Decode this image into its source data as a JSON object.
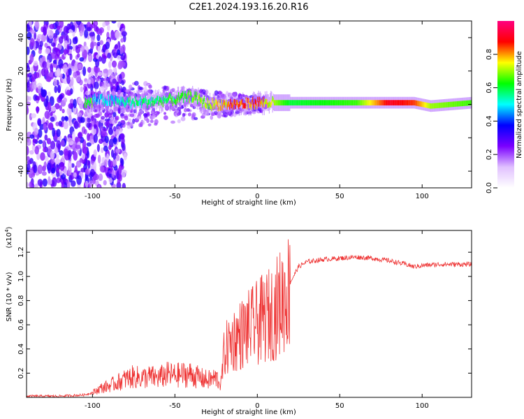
{
  "title": "C2E1.2024.193.16.20.R16",
  "chart_data": [
    {
      "type": "heatmap",
      "title": "C2E1.2024.193.16.20.R16",
      "xlabel": "Height of straight line (km)",
      "ylabel": "Frequency (Hz)",
      "xlim": [
        -140,
        130
      ],
      "ylim": [
        -50,
        50
      ],
      "xticks": [
        -100,
        -50,
        0,
        50,
        100
      ],
      "yticks": [
        -40,
        -20,
        0,
        20,
        40
      ],
      "colorbar": {
        "label": "Normalized spectral amplitude",
        "range": [
          0,
          1
        ],
        "ticks": [
          0.0,
          0.2,
          0.4,
          0.6,
          0.8
        ],
        "colormap": [
          "#ffffff",
          "#e0c0ff",
          "#7a00ff",
          "#0000ff",
          "#00ffff",
          "#00ff00",
          "#ffff00",
          "#ff0000",
          "#ff0080"
        ]
      },
      "ridge": {
        "description_points": [
          {
            "x": -100,
            "freq": 3,
            "amp": 0.45
          },
          {
            "x": -75,
            "freq": 1,
            "amp": 0.55
          },
          {
            "x": -50,
            "freq": 3,
            "amp": 0.6
          },
          {
            "x": -40,
            "freq": 5,
            "amp": 0.65
          },
          {
            "x": -30,
            "freq": 0,
            "amp": 0.7
          },
          {
            "x": -10,
            "freq": 0,
            "amp": 0.85
          },
          {
            "x": 0,
            "freq": 1,
            "amp": 0.8
          },
          {
            "x": 20,
            "freq": 1,
            "amp": 0.6
          },
          {
            "x": 60,
            "freq": 1,
            "amp": 0.65
          },
          {
            "x": 80,
            "freq": 1,
            "amp": 0.9
          },
          {
            "x": 95,
            "freq": 1,
            "amp": 0.85
          },
          {
            "x": 105,
            "freq": -1,
            "amp": 0.7
          },
          {
            "x": 130,
            "freq": 1,
            "amp": 0.65
          }
        ]
      }
    },
    {
      "type": "line",
      "xlabel": "Height of straight line (km)",
      "ylabel": "SNR (10 * v/v)",
      "yscale_label": "(x10",
      "yscale_exp": "4",
      "yscale_close": ")",
      "xlim": [
        -140,
        130
      ],
      "ylim": [
        0,
        1.38
      ],
      "xticks": [
        -100,
        -50,
        0,
        50,
        100
      ],
      "yticks": [
        0.2,
        0.4,
        0.6,
        0.8,
        1.0,
        1.2
      ],
      "color": "#ee3333",
      "series": [
        {
          "name": "SNR",
          "points": [
            [
              -140,
              0.01
            ],
            [
              -120,
              0.01
            ],
            [
              -105,
              0.02
            ],
            [
              -100,
              0.04
            ],
            [
              -95,
              0.08
            ],
            [
              -90,
              0.1
            ],
            [
              -85,
              0.13
            ],
            [
              -80,
              0.16
            ],
            [
              -75,
              0.18
            ],
            [
              -70,
              0.17
            ],
            [
              -65,
              0.18
            ],
            [
              -60,
              0.17
            ],
            [
              -55,
              0.2
            ],
            [
              -50,
              0.19
            ],
            [
              -45,
              0.2
            ],
            [
              -40,
              0.2
            ],
            [
              -35,
              0.17
            ],
            [
              -30,
              0.15
            ],
            [
              -25,
              0.17
            ],
            [
              -22,
              0.12
            ],
            [
              -20,
              0.4
            ],
            [
              -15,
              0.5
            ],
            [
              -10,
              0.55
            ],
            [
              -5,
              0.6
            ],
            [
              0,
              0.65
            ],
            [
              5,
              0.7
            ],
            [
              10,
              0.75
            ],
            [
              15,
              0.85
            ],
            [
              20,
              0.95
            ],
            [
              25,
              1.08
            ],
            [
              30,
              1.12
            ],
            [
              40,
              1.14
            ],
            [
              50,
              1.15
            ],
            [
              60,
              1.16
            ],
            [
              70,
              1.15
            ],
            [
              80,
              1.13
            ],
            [
              90,
              1.1
            ],
            [
              95,
              1.08
            ],
            [
              100,
              1.09
            ],
            [
              110,
              1.1
            ],
            [
              120,
              1.1
            ],
            [
              130,
              1.1
            ]
          ]
        }
      ]
    }
  ]
}
